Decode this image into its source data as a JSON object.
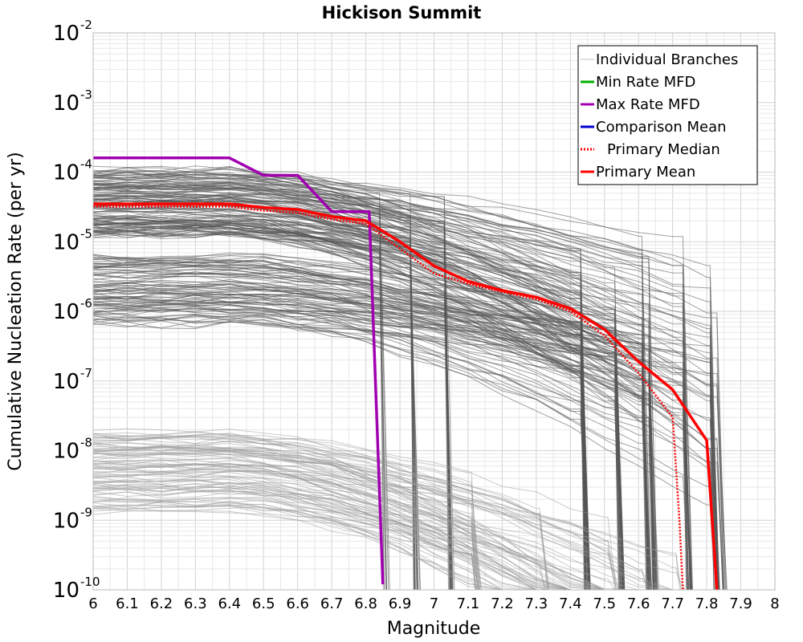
{
  "chart_data": {
    "type": "line",
    "title": "Hickison Summit",
    "xlabel": "Magnitude",
    "ylabel": "Cumulative Nucleation Rate (per yr)",
    "xlim": [
      6,
      8
    ],
    "ylim": [
      1e-10,
      0.01
    ],
    "yscale": "log",
    "grid": true,
    "legend_position": "top-right",
    "x_ticks": [
      "6",
      "6.1",
      "6.2",
      "6.3",
      "6.4",
      "6.5",
      "6.6",
      "6.7",
      "6.8",
      "6.9",
      "7",
      "7.1",
      "7.2",
      "7.3",
      "7.4",
      "7.5",
      "7.6",
      "7.7",
      "7.8",
      "7.9",
      "8"
    ],
    "y_ticks": [
      {
        "base": "10",
        "exp": "-2"
      },
      {
        "base": "10",
        "exp": "-3"
      },
      {
        "base": "10",
        "exp": "-4"
      },
      {
        "base": "10",
        "exp": "-5"
      },
      {
        "base": "10",
        "exp": "-6"
      },
      {
        "base": "10",
        "exp": "-7"
      },
      {
        "base": "10",
        "exp": "-8"
      },
      {
        "base": "10",
        "exp": "-9"
      },
      {
        "base": "10",
        "exp": "-10"
      }
    ],
    "series": [
      {
        "name": "Individual Branches",
        "color": "#c0c0c0",
        "style": "solid",
        "x": [],
        "y": []
      },
      {
        "name": "Min Rate MFD",
        "color": "#00b000",
        "style": "solid",
        "x": [],
        "y": []
      },
      {
        "name": "Max Rate MFD",
        "color": "#a000b0",
        "style": "solid",
        "x": [
          6.0,
          6.4,
          6.5,
          6.6,
          6.7,
          6.8,
          6.81,
          6.85
        ],
        "y": [
          0.00016,
          0.00016,
          9e-05,
          9e-05,
          2.7e-05,
          2.7e-05,
          2.7e-05,
          1.2e-10
        ]
      },
      {
        "name": "Comparison Mean",
        "color": "#0000d0",
        "style": "solid",
        "x": [],
        "y": []
      },
      {
        "name": "Primary Median",
        "color": "#ff0000",
        "style": "dotted",
        "x": [
          6.0,
          6.4,
          6.5,
          6.6,
          6.7,
          6.8,
          6.9,
          7.0,
          7.1,
          7.2,
          7.3,
          7.4,
          7.5,
          7.6,
          7.7,
          7.72,
          7.73
        ],
        "y": [
          3.2e-05,
          3.2e-05,
          2.8e-05,
          2.6e-05,
          2.1e-05,
          1.8e-05,
          8e-06,
          3.5e-06,
          2.5e-06,
          1.9e-06,
          1.5e-06,
          1e-06,
          4.5e-07,
          1.3e-07,
          3e-08,
          1e-09,
          1e-10
        ]
      },
      {
        "name": "Primary Mean",
        "color": "#ff0000",
        "style": "solid",
        "x": [
          6.0,
          6.4,
          6.5,
          6.6,
          6.7,
          6.8,
          6.9,
          7.0,
          7.1,
          7.2,
          7.3,
          7.4,
          7.5,
          7.6,
          7.7,
          7.8,
          7.83
        ],
        "y": [
          3.5e-05,
          3.5e-05,
          3.1e-05,
          2.9e-05,
          2.3e-05,
          2e-05,
          1e-05,
          4.5e-06,
          2.7e-06,
          2e-06,
          1.6e-06,
          1.1e-06,
          5.5e-07,
          1.9e-07,
          7.5e-08,
          1.4e-08,
          1e-10
        ]
      }
    ]
  }
}
